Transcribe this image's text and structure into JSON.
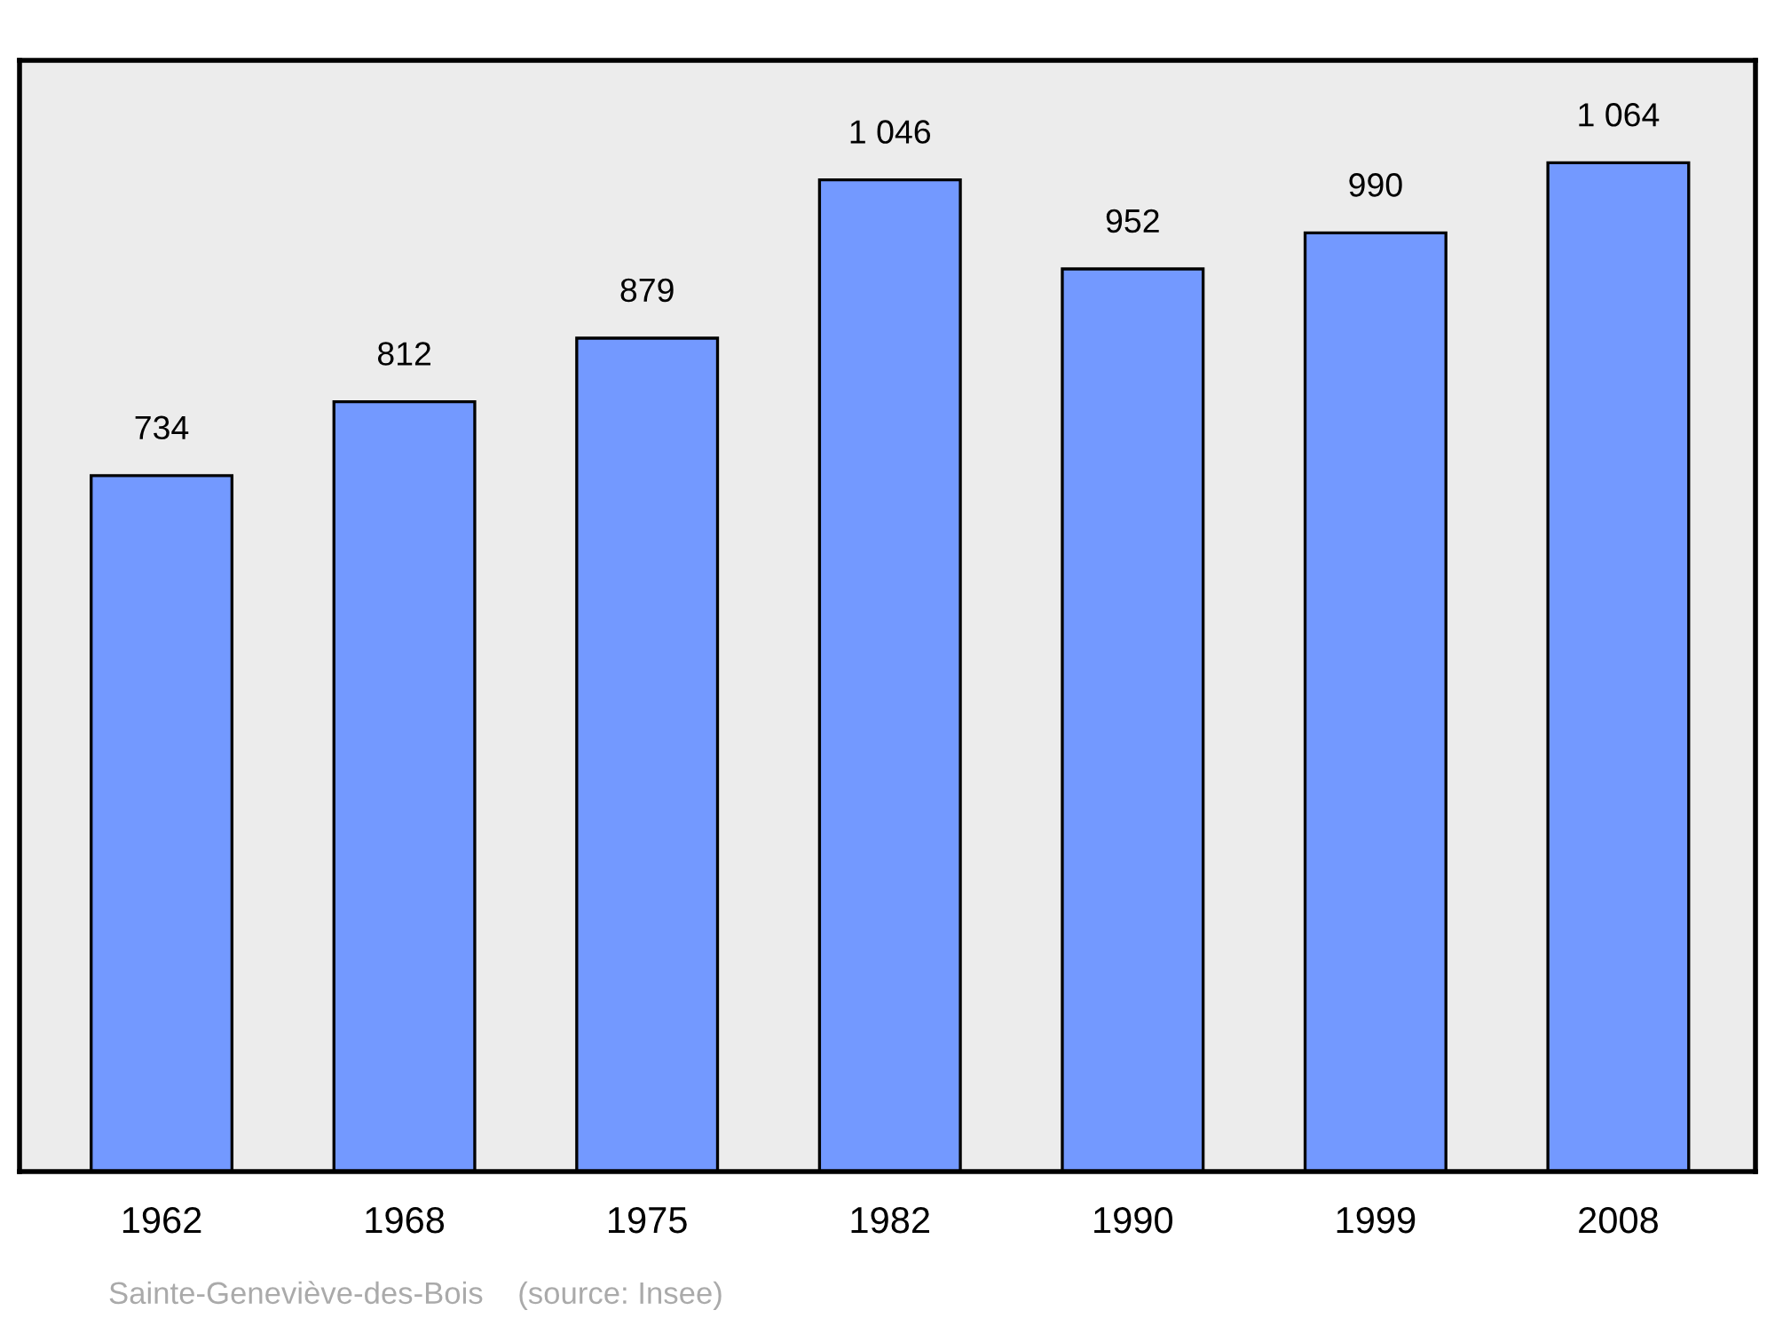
{
  "chart_data": {
    "type": "bar",
    "categories": [
      "1962",
      "1968",
      "1975",
      "1982",
      "1990",
      "1999",
      "2008"
    ],
    "values": [
      734,
      812,
      879,
      1046,
      952,
      990,
      1064
    ],
    "value_labels": [
      "734",
      "812",
      "879",
      "1 046",
      "952",
      "990",
      "1 064"
    ],
    "color": "#7399ff",
    "ylim": [
      0,
      1172
    ],
    "tick_labels": "x",
    "grid": false,
    "legend": false,
    "annotations": [
      "Sainte-Geneviève-des-Bois    (source: Insee)"
    ]
  }
}
